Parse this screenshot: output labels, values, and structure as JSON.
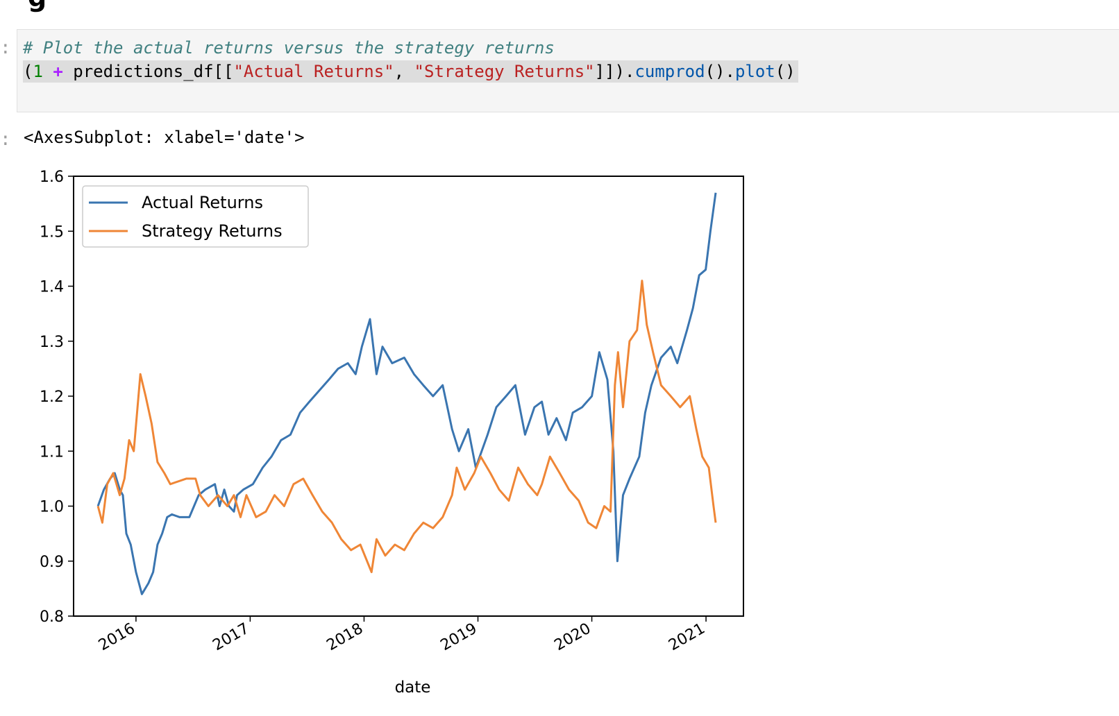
{
  "cell": {
    "prompt_in": ":",
    "prompt_out": ":",
    "comment": "# Plot the actual returns versus the strategy returns",
    "code_tokens": [
      {
        "t": "(",
        "c": ""
      },
      {
        "t": "1",
        "c": "tok-num"
      },
      {
        "t": " ",
        "c": ""
      },
      {
        "t": "+",
        "c": "tok-op"
      },
      {
        "t": " predictions_df[[",
        "c": ""
      },
      {
        "t": "\"Actual Returns\"",
        "c": "tok-str"
      },
      {
        "t": ", ",
        "c": ""
      },
      {
        "t": "\"Strategy Returns\"",
        "c": "tok-str"
      },
      {
        "t": "]]).",
        "c": ""
      },
      {
        "t": "cumprod",
        "c": "tok-fn"
      },
      {
        "t": "().",
        "c": ""
      },
      {
        "t": "plot",
        "c": "tok-fn"
      },
      {
        "t": "()",
        "c": ""
      }
    ],
    "output_repr": "<AxesSubplot: xlabel='date'>"
  },
  "chart_data": {
    "type": "line",
    "xlabel": "date",
    "ylabel": "",
    "ylim": [
      0.8,
      1.6
    ],
    "xlim": [
      "2015-06-15",
      "2021-05-01"
    ],
    "yticks": [
      0.8,
      0.9,
      1.0,
      1.1,
      1.2,
      1.3,
      1.4,
      1.5,
      1.6
    ],
    "ytick_labels": [
      "0.8",
      "0.9",
      "1.0",
      "1.1",
      "1.2",
      "1.3",
      "1.4",
      "1.5",
      "1.6"
    ],
    "xticks": [
      "2016-01-01",
      "2017-01-01",
      "2018-01-01",
      "2019-01-01",
      "2020-01-01",
      "2021-01-01"
    ],
    "xtick_labels": [
      "2016",
      "2017",
      "2018",
      "2019",
      "2020",
      "2021"
    ],
    "legend_position": "upper-left",
    "grid": false,
    "series": [
      {
        "name": "Actual Returns",
        "color": "#3a75b0",
        "points": [
          [
            "2015-09-01",
            1.0
          ],
          [
            "2015-09-20",
            1.03
          ],
          [
            "2015-10-10",
            1.05
          ],
          [
            "2015-10-25",
            1.06
          ],
          [
            "2015-11-10",
            1.03
          ],
          [
            "2015-11-20",
            1.02
          ],
          [
            "2015-12-01",
            0.95
          ],
          [
            "2015-12-15",
            0.93
          ],
          [
            "2016-01-01",
            0.88
          ],
          [
            "2016-01-20",
            0.84
          ],
          [
            "2016-02-10",
            0.86
          ],
          [
            "2016-02-25",
            0.88
          ],
          [
            "2016-03-10",
            0.93
          ],
          [
            "2016-03-25",
            0.95
          ],
          [
            "2016-04-10",
            0.98
          ],
          [
            "2016-04-25",
            0.985
          ],
          [
            "2016-05-20",
            0.98
          ],
          [
            "2016-06-20",
            0.98
          ],
          [
            "2016-07-05",
            1.0
          ],
          [
            "2016-07-20",
            1.02
          ],
          [
            "2016-08-10",
            1.03
          ],
          [
            "2016-09-10",
            1.04
          ],
          [
            "2016-09-25",
            1.0
          ],
          [
            "2016-10-10",
            1.03
          ],
          [
            "2016-10-25",
            1.0
          ],
          [
            "2016-11-10",
            0.99
          ],
          [
            "2016-11-20",
            1.02
          ],
          [
            "2016-12-10",
            1.03
          ],
          [
            "2017-01-10",
            1.04
          ],
          [
            "2017-02-10",
            1.07
          ],
          [
            "2017-03-10",
            1.09
          ],
          [
            "2017-04-10",
            1.12
          ],
          [
            "2017-05-10",
            1.13
          ],
          [
            "2017-06-10",
            1.17
          ],
          [
            "2017-07-10",
            1.19
          ],
          [
            "2017-08-10",
            1.21
          ],
          [
            "2017-09-10",
            1.23
          ],
          [
            "2017-10-10",
            1.25
          ],
          [
            "2017-11-10",
            1.26
          ],
          [
            "2017-12-05",
            1.24
          ],
          [
            "2017-12-25",
            1.29
          ],
          [
            "2018-01-20",
            1.34
          ],
          [
            "2018-02-10",
            1.24
          ],
          [
            "2018-03-01",
            1.29
          ],
          [
            "2018-04-01",
            1.26
          ],
          [
            "2018-05-10",
            1.27
          ],
          [
            "2018-06-10",
            1.24
          ],
          [
            "2018-07-10",
            1.22
          ],
          [
            "2018-08-10",
            1.2
          ],
          [
            "2018-09-10",
            1.22
          ],
          [
            "2018-10-10",
            1.14
          ],
          [
            "2018-11-01",
            1.1
          ],
          [
            "2018-12-01",
            1.14
          ],
          [
            "2018-12-25",
            1.07
          ],
          [
            "2019-02-01",
            1.13
          ],
          [
            "2019-03-01",
            1.18
          ],
          [
            "2019-04-01",
            1.2
          ],
          [
            "2019-05-01",
            1.22
          ],
          [
            "2019-06-01",
            1.13
          ],
          [
            "2019-07-01",
            1.18
          ],
          [
            "2019-07-25",
            1.19
          ],
          [
            "2019-08-15",
            1.13
          ],
          [
            "2019-09-10",
            1.16
          ],
          [
            "2019-10-10",
            1.12
          ],
          [
            "2019-11-01",
            1.17
          ],
          [
            "2019-12-01",
            1.18
          ],
          [
            "2020-01-01",
            1.2
          ],
          [
            "2020-01-25",
            1.28
          ],
          [
            "2020-02-20",
            1.23
          ],
          [
            "2020-03-10",
            1.1
          ],
          [
            "2020-03-23",
            0.9
          ],
          [
            "2020-04-10",
            1.02
          ],
          [
            "2020-05-01",
            1.05
          ],
          [
            "2020-06-01",
            1.09
          ],
          [
            "2020-06-20",
            1.17
          ],
          [
            "2020-07-10",
            1.22
          ],
          [
            "2020-08-10",
            1.27
          ],
          [
            "2020-09-10",
            1.29
          ],
          [
            "2020-10-01",
            1.26
          ],
          [
            "2020-11-01",
            1.32
          ],
          [
            "2020-11-20",
            1.36
          ],
          [
            "2020-12-10",
            1.42
          ],
          [
            "2020-12-31",
            1.43
          ],
          [
            "2021-01-15",
            1.5
          ],
          [
            "2021-02-01",
            1.57
          ]
        ]
      },
      {
        "name": "Strategy Returns",
        "color": "#ef8636",
        "points": [
          [
            "2015-09-01",
            1.0
          ],
          [
            "2015-09-15",
            0.97
          ],
          [
            "2015-10-01",
            1.04
          ],
          [
            "2015-10-20",
            1.06
          ],
          [
            "2015-11-10",
            1.02
          ],
          [
            "2015-11-25",
            1.05
          ],
          [
            "2015-12-10",
            1.12
          ],
          [
            "2015-12-25",
            1.1
          ],
          [
            "2016-01-15",
            1.24
          ],
          [
            "2016-02-01",
            1.2
          ],
          [
            "2016-02-20",
            1.15
          ],
          [
            "2016-03-10",
            1.08
          ],
          [
            "2016-04-01",
            1.06
          ],
          [
            "2016-04-20",
            1.04
          ],
          [
            "2016-06-10",
            1.05
          ],
          [
            "2016-07-10",
            1.05
          ],
          [
            "2016-07-25",
            1.02
          ],
          [
            "2016-08-20",
            1.0
          ],
          [
            "2016-09-20",
            1.02
          ],
          [
            "2016-10-20",
            1.0
          ],
          [
            "2016-11-10",
            1.02
          ],
          [
            "2016-12-01",
            0.98
          ],
          [
            "2016-12-20",
            1.02
          ],
          [
            "2017-01-20",
            0.98
          ],
          [
            "2017-02-20",
            0.99
          ],
          [
            "2017-03-20",
            1.02
          ],
          [
            "2017-04-20",
            1.0
          ],
          [
            "2017-05-20",
            1.04
          ],
          [
            "2017-06-20",
            1.05
          ],
          [
            "2017-07-20",
            1.02
          ],
          [
            "2017-08-20",
            0.99
          ],
          [
            "2017-09-20",
            0.97
          ],
          [
            "2017-10-20",
            0.94
          ],
          [
            "2017-11-20",
            0.92
          ],
          [
            "2017-12-20",
            0.93
          ],
          [
            "2018-01-25",
            0.88
          ],
          [
            "2018-02-10",
            0.94
          ],
          [
            "2018-03-10",
            0.91
          ],
          [
            "2018-04-10",
            0.93
          ],
          [
            "2018-05-10",
            0.92
          ],
          [
            "2018-06-10",
            0.95
          ],
          [
            "2018-07-10",
            0.97
          ],
          [
            "2018-08-10",
            0.96
          ],
          [
            "2018-09-10",
            0.98
          ],
          [
            "2018-10-10",
            1.02
          ],
          [
            "2018-10-25",
            1.07
          ],
          [
            "2018-11-20",
            1.03
          ],
          [
            "2018-12-20",
            1.06
          ],
          [
            "2019-01-10",
            1.09
          ],
          [
            "2019-02-10",
            1.06
          ],
          [
            "2019-03-10",
            1.03
          ],
          [
            "2019-04-10",
            1.01
          ],
          [
            "2019-05-10",
            1.07
          ],
          [
            "2019-06-10",
            1.04
          ],
          [
            "2019-07-10",
            1.02
          ],
          [
            "2019-07-25",
            1.04
          ],
          [
            "2019-08-20",
            1.09
          ],
          [
            "2019-09-20",
            1.06
          ],
          [
            "2019-10-20",
            1.03
          ],
          [
            "2019-11-20",
            1.01
          ],
          [
            "2019-12-20",
            0.97
          ],
          [
            "2020-01-15",
            0.96
          ],
          [
            "2020-02-10",
            1.0
          ],
          [
            "2020-03-01",
            0.99
          ],
          [
            "2020-03-15",
            1.22
          ],
          [
            "2020-03-25",
            1.28
          ],
          [
            "2020-04-10",
            1.18
          ],
          [
            "2020-05-01",
            1.3
          ],
          [
            "2020-05-25",
            1.32
          ],
          [
            "2020-06-10",
            1.41
          ],
          [
            "2020-06-25",
            1.33
          ],
          [
            "2020-07-15",
            1.28
          ],
          [
            "2020-08-10",
            1.22
          ],
          [
            "2020-09-10",
            1.2
          ],
          [
            "2020-10-10",
            1.18
          ],
          [
            "2020-11-10",
            1.2
          ],
          [
            "2020-12-01",
            1.14
          ],
          [
            "2020-12-20",
            1.09
          ],
          [
            "2021-01-10",
            1.07
          ],
          [
            "2021-01-25",
            1.0
          ],
          [
            "2021-02-01",
            0.97
          ]
        ]
      }
    ]
  }
}
